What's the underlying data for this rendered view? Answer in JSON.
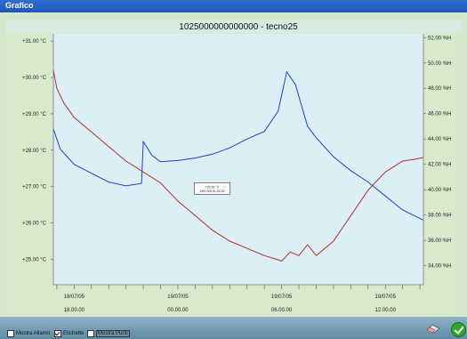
{
  "window": {
    "title": "Grafico"
  },
  "chart_data": {
    "type": "line",
    "title": "1025000000000000 - tecno25",
    "left_axis": {
      "ticks": [
        "+31.00 °C",
        "+30.00 °C",
        "+29.00 °C",
        "+28.00 °C",
        "+27.00 °C",
        "+26.00 °C",
        "+25.00 °C"
      ],
      "values": [
        31,
        30,
        29,
        28,
        27,
        26,
        25
      ],
      "range": [
        24.3,
        31.2
      ]
    },
    "right_axis": {
      "ticks": [
        "52.00 %H",
        "50.00 %H",
        "48.00 %H",
        "46.00 %H",
        "44.00 %H",
        "42.00 %H",
        "40.00 %H",
        "38.00 %H",
        "36.00 %H",
        "34.00 %H"
      ],
      "values": [
        52,
        50,
        48,
        46,
        44,
        42,
        40,
        38,
        36,
        34
      ],
      "range": [
        32.5,
        52.3
      ]
    },
    "x_labels": [
      {
        "date": "18/07/05",
        "time": "18.00.00"
      },
      {
        "date": "19/07/05",
        "time": "00.00.00"
      },
      {
        "date": "19/07/05",
        "time": "06.00.00"
      },
      {
        "date": "19/07/05",
        "time": "12.00.00"
      }
    ],
    "x_range_hours": [
      -1.2,
      20.2
    ],
    "x_label_hours": [
      0,
      6,
      12,
      18
    ],
    "annotation": {
      "line1": "+25.92 °C",
      "line2": "19/07/05 01.02.00"
    },
    "series": [
      {
        "color": "#b03030",
        "axis": "left",
        "points": [
          [
            -1.2,
            30.2
          ],
          [
            -1.0,
            29.7
          ],
          [
            -0.6,
            29.3
          ],
          [
            0,
            28.9
          ],
          [
            1,
            28.5
          ],
          [
            2,
            28.1
          ],
          [
            3,
            27.7
          ],
          [
            4,
            27.4
          ],
          [
            5,
            27.1
          ],
          [
            6,
            26.6
          ],
          [
            7,
            26.2
          ],
          [
            8,
            25.8
          ],
          [
            9,
            25.5
          ],
          [
            10,
            25.3
          ],
          [
            11,
            25.1
          ],
          [
            11.7,
            25.0
          ],
          [
            12,
            24.95
          ],
          [
            12.5,
            25.2
          ],
          [
            13,
            25.1
          ],
          [
            13.5,
            25.4
          ],
          [
            14,
            25.1
          ],
          [
            15,
            25.5
          ],
          [
            16,
            26.2
          ],
          [
            17,
            26.9
          ],
          [
            18,
            27.4
          ],
          [
            19,
            27.7
          ],
          [
            19.7,
            27.75
          ],
          [
            20.2,
            27.8
          ]
        ]
      },
      {
        "color": "#1f3fd0",
        "axis": "right",
        "points": [
          [
            -1.2,
            44.8
          ],
          [
            -0.8,
            43.2
          ],
          [
            0,
            42.0
          ],
          [
            1,
            41.3
          ],
          [
            2,
            40.6
          ],
          [
            3,
            40.3
          ],
          [
            3.9,
            40.5
          ],
          [
            4.0,
            43.8
          ],
          [
            4.5,
            42.7
          ],
          [
            5,
            42.2
          ],
          [
            6,
            42.3
          ],
          [
            7,
            42.5
          ],
          [
            8,
            42.8
          ],
          [
            9,
            43.3
          ],
          [
            10,
            44.0
          ],
          [
            11,
            44.6
          ],
          [
            11.8,
            46.2
          ],
          [
            12.3,
            49.3
          ],
          [
            12.8,
            48.3
          ],
          [
            13.5,
            45.0
          ],
          [
            14,
            44.1
          ],
          [
            15,
            42.6
          ],
          [
            16,
            41.5
          ],
          [
            17,
            40.6
          ],
          [
            18,
            39.5
          ],
          [
            19,
            38.4
          ],
          [
            20.2,
            37.6
          ]
        ]
      }
    ]
  },
  "options": [
    {
      "label": "Mostra Allarmi",
      "checked": false
    },
    {
      "label": "Etichette",
      "checked": true
    },
    {
      "label": "Mostra Punti",
      "checked": false
    }
  ],
  "icons": {
    "eraser": "eraser-icon",
    "ok": "ok-check-icon"
  }
}
